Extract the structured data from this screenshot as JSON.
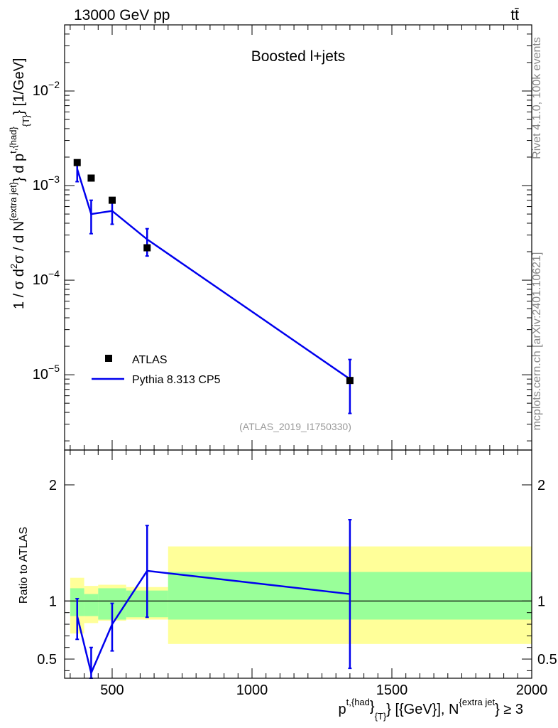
{
  "header": {
    "energy_label": "13000 GeV pp",
    "process_label": "tt̄"
  },
  "side_labels": {
    "rivet": "Rivet 4.1.0,  100k events",
    "source": "mcplots.cern.ch [arXiv:2401.10621]"
  },
  "chart_data": [
    {
      "type": "scatter",
      "panel": "main",
      "title": "Boosted l+jets",
      "analysis_id": "(ATLAS_2019_I1750330)",
      "yscale": "log",
      "xlim": [
        330,
        2000
      ],
      "ylim": [
        1.6e-06,
        0.05
      ],
      "ylabel": {
        "prefix": "1 / σ d",
        "sup2": "2",
        "mid": "σ / d N",
        "sup_extra": "{extra jet}",
        "mid2": "} d p",
        "sup_had": "t,{had}",
        "sub_T": "{T}",
        "tail": "} [1/GeV]"
      },
      "yticks": [
        {
          "value": 1e-05,
          "base": "10",
          "exp": "−5"
        },
        {
          "value": 0.0001,
          "base": "10",
          "exp": "−4"
        },
        {
          "value": 0.001,
          "base": "10",
          "exp": "−3"
        },
        {
          "value": 0.01,
          "base": "10",
          "exp": "−2"
        }
      ],
      "legend": {
        "placement": "bottom-left",
        "entries": [
          "ATLAS",
          "Pythia 8.313 CP5"
        ]
      },
      "series": [
        {
          "name": "ATLAS",
          "style": "markers",
          "color": "#000000",
          "x": [
            375,
            425,
            500,
            625,
            1350
          ],
          "y": [
            0.00175,
            0.0012,
            0.0007,
            0.00022,
            8.7e-06
          ]
        },
        {
          "name": "Pythia 8.313 CP5",
          "style": "line",
          "color": "#0000ee",
          "x": [
            375,
            425,
            500,
            625,
            1350
          ],
          "y": [
            0.0015,
            0.0005,
            0.00054,
            0.00027,
            9e-06
          ],
          "yerr_low": [
            0.0011,
            0.00031,
            0.00039,
            0.00018,
            3.9e-06
          ],
          "yerr_high": [
            0.00175,
            0.0007,
            0.0007,
            0.00035,
            1.45e-05
          ]
        }
      ]
    },
    {
      "type": "line",
      "panel": "ratio",
      "ylabel": "Ratio to ATLAS",
      "xlabel": {
        "p": "p",
        "sup_had": "t,{had",
        "close1": "}",
        "sub_T": "{T}",
        "tail1": "} [{GeV}], N",
        "sup_extra": "{extra jet",
        "tail2": "} ≥ 3"
      },
      "xlim": [
        330,
        2000
      ],
      "ylim": [
        0.335,
        2.3
      ],
      "xticks": [
        500,
        1000,
        1500,
        2000
      ],
      "xtick_labels": [
        "500",
        "1000",
        "1500",
        "2000"
      ],
      "yticks": [
        0.5,
        1,
        2
      ],
      "ytick_labels": [
        "0.5",
        "1",
        "2"
      ],
      "reference_line": 1,
      "bins": [
        {
          "x0": 350,
          "x1": 400,
          "inner": [
            0.87,
            1.11
          ],
          "outer": [
            0.72,
            1.2
          ]
        },
        {
          "x0": 400,
          "x1": 450,
          "inner": [
            0.87,
            1.06
          ],
          "outer": [
            0.81,
            1.13
          ]
        },
        {
          "x0": 450,
          "x1": 550,
          "inner": [
            0.84,
            1.11
          ],
          "outer": [
            0.83,
            1.14
          ]
        },
        {
          "x0": 550,
          "x1": 700,
          "inner": [
            0.86,
            1.09
          ],
          "outer": [
            0.84,
            1.12
          ]
        },
        {
          "x0": 700,
          "x1": 2000,
          "inner": [
            0.84,
            1.25
          ],
          "outer": [
            0.63,
            1.47
          ]
        }
      ],
      "series": [
        {
          "name": "Pythia 8.313 CP5",
          "color": "#0000ee",
          "x": [
            375,
            425,
            500,
            625,
            1350
          ],
          "y": [
            0.87,
            0.38,
            0.8,
            1.26,
            1.06
          ],
          "yerr_low": [
            0.67,
            0.335,
            0.57,
            0.86,
            0.42
          ],
          "yerr_high": [
            1.02,
            0.6,
            0.98,
            1.65,
            1.7
          ]
        }
      ]
    }
  ]
}
